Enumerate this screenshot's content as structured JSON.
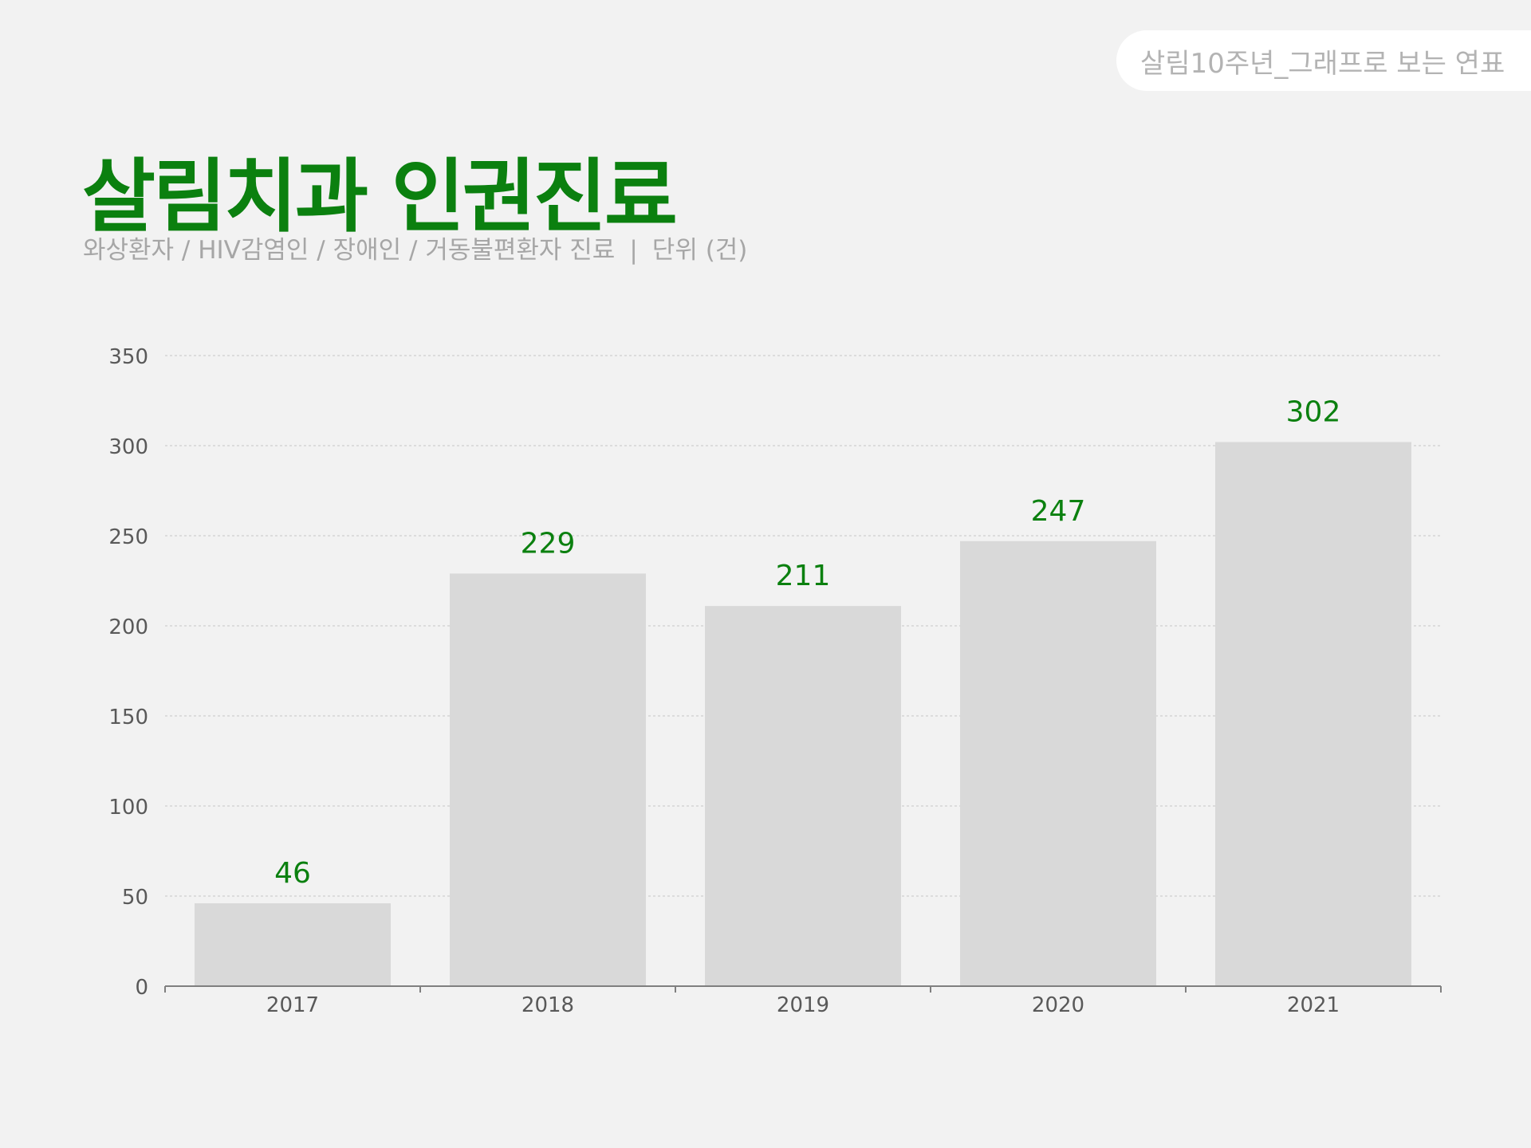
{
  "badge": {
    "label": "살림10주년_그래프로 보는 연표"
  },
  "header": {
    "title": "살림치과 인권진료",
    "subtitle_main": "와상환자 / HIV감염인 / 장애인 / 거동불편환자 진료",
    "subtitle_divider": "|",
    "subtitle_unit": "단위 (건)"
  },
  "colors": {
    "accent": "#0b800f",
    "bar": "#d9d9d9",
    "axis": "#7f7f7f",
    "grid": "#d0d0d0",
    "tick_text": "#595959",
    "background": "#f2f2f2"
  },
  "chart_data": {
    "type": "bar",
    "categories": [
      "2017",
      "2018",
      "2019",
      "2020",
      "2021"
    ],
    "values": [
      46,
      229,
      211,
      247,
      302
    ],
    "data_labels": [
      "46",
      "229",
      "211",
      "247",
      "302"
    ],
    "yticks": [
      0,
      50,
      100,
      150,
      200,
      250,
      300,
      350
    ],
    "ylim": [
      0,
      350
    ],
    "grid": true,
    "legend": "none"
  }
}
